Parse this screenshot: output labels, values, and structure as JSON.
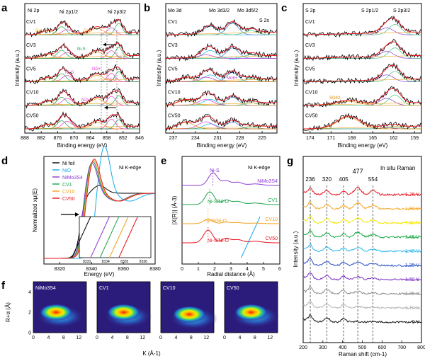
{
  "panel_letters": [
    "a",
    "b",
    "c",
    "d",
    "e",
    "f",
    "g"
  ],
  "colors": {
    "data": "#000000",
    "envelope": "#e8141e",
    "ni_s": "#1aa54a",
    "ni_o": "#e23fd0",
    "sat": "#f2a21c",
    "mo4": "#1bb0f0",
    "mo6": "#c33bd0",
    "mos": "#2c7cd8",
    "so4": "#e08a00",
    "s_low": "#8b3ad6",
    "s_high": "#42c27e",
    "arrow": "#000000",
    "dash": "#555555",
    "cmap_low": "#2b1b7a",
    "cmap_high": "#ff1a00"
  },
  "panel_a": {
    "title": "Ni 2p",
    "xlabel": "Binding energy (eV)",
    "ylabel": "Intensity (a.u.)",
    "xticks": [
      "888",
      "882",
      "876",
      "870",
      "864",
      "858",
      "852",
      "846"
    ],
    "peak_labels": {
      "ni2p12": "Ni 2p1/2",
      "ni2p32": "Ni 2p3/2",
      "sat1": "Sat.",
      "sat2": "Sat."
    },
    "samples": [
      "CV1",
      "CV3",
      "CV5",
      "CV10",
      "CV50"
    ],
    "annotations": {
      "nis1": "Ni-S",
      "nis2": "Ni-S",
      "nio1": "Ni-O",
      "nio2": "Ni-O",
      "ni3": "Ni3+",
      "ni2": "Ni2+"
    }
  },
  "panel_b": {
    "title": "Mo 3d",
    "xlabel": "Binding energy (eV)",
    "ylabel": "Intensity (a.u.)",
    "xticks": [
      "237",
      "234",
      "231",
      "228",
      "225"
    ],
    "peak_labels": {
      "mo32": "Mo 3d3/2",
      "mo52": "Mo 3d5/2",
      "s2s": "S 2s"
    },
    "samples": [
      "CV1",
      "CV3",
      "CV5",
      "CV10",
      "CV50"
    ],
    "annotations": {
      "mo4": "Mo4+",
      "mo6": "Mo6+",
      "mo6b": "Mo6+"
    }
  },
  "panel_c": {
    "title": "S 2p",
    "xlabel": "Binding energy (eV)",
    "ylabel": "Intensity (a.u.)",
    "xticks": [
      "174",
      "171",
      "168",
      "165",
      "162",
      "159"
    ],
    "peak_labels": {
      "s12": "S 2p1/2",
      "s32": "S 2p3/2"
    },
    "samples": [
      "CV1",
      "CV3",
      "CV5",
      "CV10",
      "CV50"
    ],
    "annotations": {
      "so4": "SO42-"
    }
  },
  "panel_d": {
    "edge": "Ni K-edge",
    "xlabel": "Energy (eV)",
    "ylabel": "Normalized xμ(E)",
    "xticks": [
      "8320",
      "8340",
      "8360",
      "8380"
    ],
    "inset_xticks": [
      "8333",
      "8334",
      "8335",
      "8336"
    ],
    "legend": [
      "Ni foil",
      "NiO",
      "NiMo3S4",
      "CV1",
      "CV10",
      "CV50"
    ]
  },
  "panel_e": {
    "edge": "Ni K-edge",
    "xlabel": "Radial distance (Å)",
    "ylabel": "|X(R)| (Å-3)",
    "xticks": [
      "0",
      "1",
      "2",
      "3",
      "4",
      "5",
      "6"
    ],
    "samples": [
      "NiMo3S4",
      "CV1",
      "CV10",
      "CV50"
    ],
    "annotations": {
      "nis": "Ni-S",
      "nisnio1": "Ni-S/Ni-O",
      "nisnio2": "Ni-S/Ni-O",
      "nisnio3": "Ni-S/Ni-O"
    }
  },
  "panel_f": {
    "ylabel": "R+α (Å)",
    "xlabel": "K (Å-1)",
    "yticks": [
      "0",
      "2",
      "4"
    ],
    "xticks": [
      "0",
      "4",
      "8",
      "12"
    ],
    "maps": [
      "NiMo3S4",
      "CV1",
      "CV10",
      "CV50"
    ]
  },
  "panel_g": {
    "title": "In situ Raman",
    "xlabel": "Raman shift (cm-1)",
    "ylabel": "Intensity (a.u.)",
    "xticks": [
      "200",
      "300",
      "400",
      "500",
      "600",
      "700",
      "800"
    ],
    "peaks": [
      "236",
      "320",
      "405",
      "477",
      "554"
    ],
    "potentials": [
      "1.70 V",
      "1.60 V",
      "1.50 V",
      "1.45 V",
      "1.40 V",
      "1.35 V",
      "1.30 V",
      "1.20 V",
      "1.10 V",
      "0 V"
    ]
  },
  "chart_data": [
    {
      "type": "line",
      "panel": "a",
      "title": "Ni 2p",
      "xlabel": "Binding energy (eV)",
      "ylabel": "Intensity (a.u.)",
      "xlim": [
        888,
        846
      ],
      "xticks": [
        888,
        882,
        876,
        870,
        864,
        858,
        852,
        846
      ],
      "series": [
        {
          "name": "CV1",
          "peaks_ev": [
            874.5,
            861.5,
            856.3,
            853.6
          ]
        },
        {
          "name": "CV3",
          "peaks_ev": [
            874.5,
            861.5,
            856.3,
            853.6
          ]
        },
        {
          "name": "CV5",
          "peaks_ev": [
            874.5,
            861.5,
            856.3,
            853.6
          ]
        },
        {
          "name": "CV10",
          "peaks_ev": [
            874.5,
            861.5,
            856.3,
            853.6
          ]
        },
        {
          "name": "CV50",
          "peaks_ev": [
            874.5,
            861.5,
            856.3,
            853.6
          ]
        }
      ]
    },
    {
      "type": "line",
      "panel": "b",
      "title": "Mo 3d",
      "xlabel": "Binding energy (eV)",
      "ylabel": "Intensity (a.u.)",
      "xlim": [
        238,
        223
      ],
      "xticks": [
        237,
        234,
        231,
        228,
        225
      ],
      "series": [
        {
          "name": "CV1",
          "peaks_ev": [
            232.0,
            229.0,
            226.5
          ]
        },
        {
          "name": "CV3",
          "peaks_ev": [
            232.0,
            229.0,
            226.5
          ]
        },
        {
          "name": "CV5",
          "peaks_ev": [
            235.3,
            232.0,
            229.0,
            226.5
          ]
        },
        {
          "name": "CV10",
          "peaks_ev": [
            235.3,
            232.0,
            229.0,
            226.5
          ]
        },
        {
          "name": "CV50",
          "peaks_ev": [
            235.3,
            232.0,
            229.0
          ]
        }
      ]
    },
    {
      "type": "line",
      "panel": "c",
      "title": "S 2p",
      "xlabel": "Binding energy (eV)",
      "ylabel": "Intensity (a.u.)",
      "xlim": [
        175,
        158
      ],
      "xticks": [
        174,
        171,
        168,
        165,
        162,
        159
      ],
      "series": [
        {
          "name": "CV1",
          "peaks_ev": [
            163.0,
            161.8
          ]
        },
        {
          "name": "CV3",
          "peaks_ev": [
            163.0,
            161.8
          ]
        },
        {
          "name": "CV5",
          "peaks_ev": [
            163.0,
            161.8
          ]
        },
        {
          "name": "CV10",
          "peaks_ev": [
            168.5,
            163.0,
            161.8
          ]
        },
        {
          "name": "CV50",
          "peaks_ev": [
            168.5
          ]
        }
      ]
    },
    {
      "type": "line",
      "panel": "d",
      "xlabel": "Energy (eV)",
      "ylabel": "Normalized xμ(E)",
      "xlim": [
        8310,
        8380
      ],
      "xticks": [
        8320,
        8340,
        8360,
        8380
      ],
      "series": [
        {
          "name": "Ni foil",
          "edge_ev": 8333.0
        },
        {
          "name": "NiO",
          "edge_ev": 8342.0
        },
        {
          "name": "NiMo3S4",
          "edge_ev": 8334.0
        },
        {
          "name": "CV1",
          "edge_ev": 8334.5
        },
        {
          "name": "CV10",
          "edge_ev": 8335.0
        },
        {
          "name": "CV50",
          "edge_ev": 8335.5
        }
      ]
    },
    {
      "type": "line",
      "panel": "e",
      "xlabel": "Radial distance (Å)",
      "ylabel": "|X(R)| (Å-3)",
      "xlim": [
        0,
        6
      ],
      "xticks": [
        0,
        1,
        2,
        3,
        4,
        5,
        6
      ],
      "series": [
        {
          "name": "NiMo3S4",
          "peak_r": 1.9
        },
        {
          "name": "CV1",
          "peak_r": 1.7
        },
        {
          "name": "CV10",
          "peak_r": 1.6
        },
        {
          "name": "CV50",
          "peak_r": 1.6
        }
      ]
    },
    {
      "type": "heatmap",
      "panel": "f",
      "xlabel": "K (Å-1)",
      "ylabel": "R+α (Å)",
      "xlim": [
        0,
        14
      ],
      "ylim": [
        0,
        5
      ],
      "maps": [
        {
          "name": "NiMo3S4",
          "max_k": 6.0,
          "max_r": 2.0
        },
        {
          "name": "CV1",
          "max_k": 7.0,
          "max_r": 2.0
        },
        {
          "name": "CV10",
          "max_k": 7.5,
          "max_r": 1.8
        },
        {
          "name": "CV50",
          "max_k": 7.0,
          "max_r": 2.0
        }
      ]
    },
    {
      "type": "line",
      "panel": "g",
      "title": "In situ Raman",
      "xlabel": "Raman shift (cm-1)",
      "ylabel": "Intensity (a.u.)",
      "xlim": [
        200,
        800
      ],
      "xticks": [
        200,
        300,
        400,
        500,
        600,
        700,
        800
      ],
      "peak_positions": [
        236,
        320,
        405,
        477,
        554
      ],
      "series": [
        {
          "name": "1.70 V",
          "color": "#e5141c"
        },
        {
          "name": "1.60 V",
          "color": "#f5a623"
        },
        {
          "name": "1.50 V",
          "color": "#f2e600"
        },
        {
          "name": "1.45 V",
          "color": "#17a844"
        },
        {
          "name": "1.40 V",
          "color": "#2bb5e8"
        },
        {
          "name": "1.35 V",
          "color": "#2a4fc8"
        },
        {
          "name": "1.30 V",
          "color": "#7b2fc4"
        },
        {
          "name": "1.20 V",
          "color": "#8a8a8a"
        },
        {
          "name": "1.10 V",
          "color": "#b5b5b5"
        },
        {
          "name": "0 V",
          "color": "#111111"
        }
      ]
    }
  ]
}
